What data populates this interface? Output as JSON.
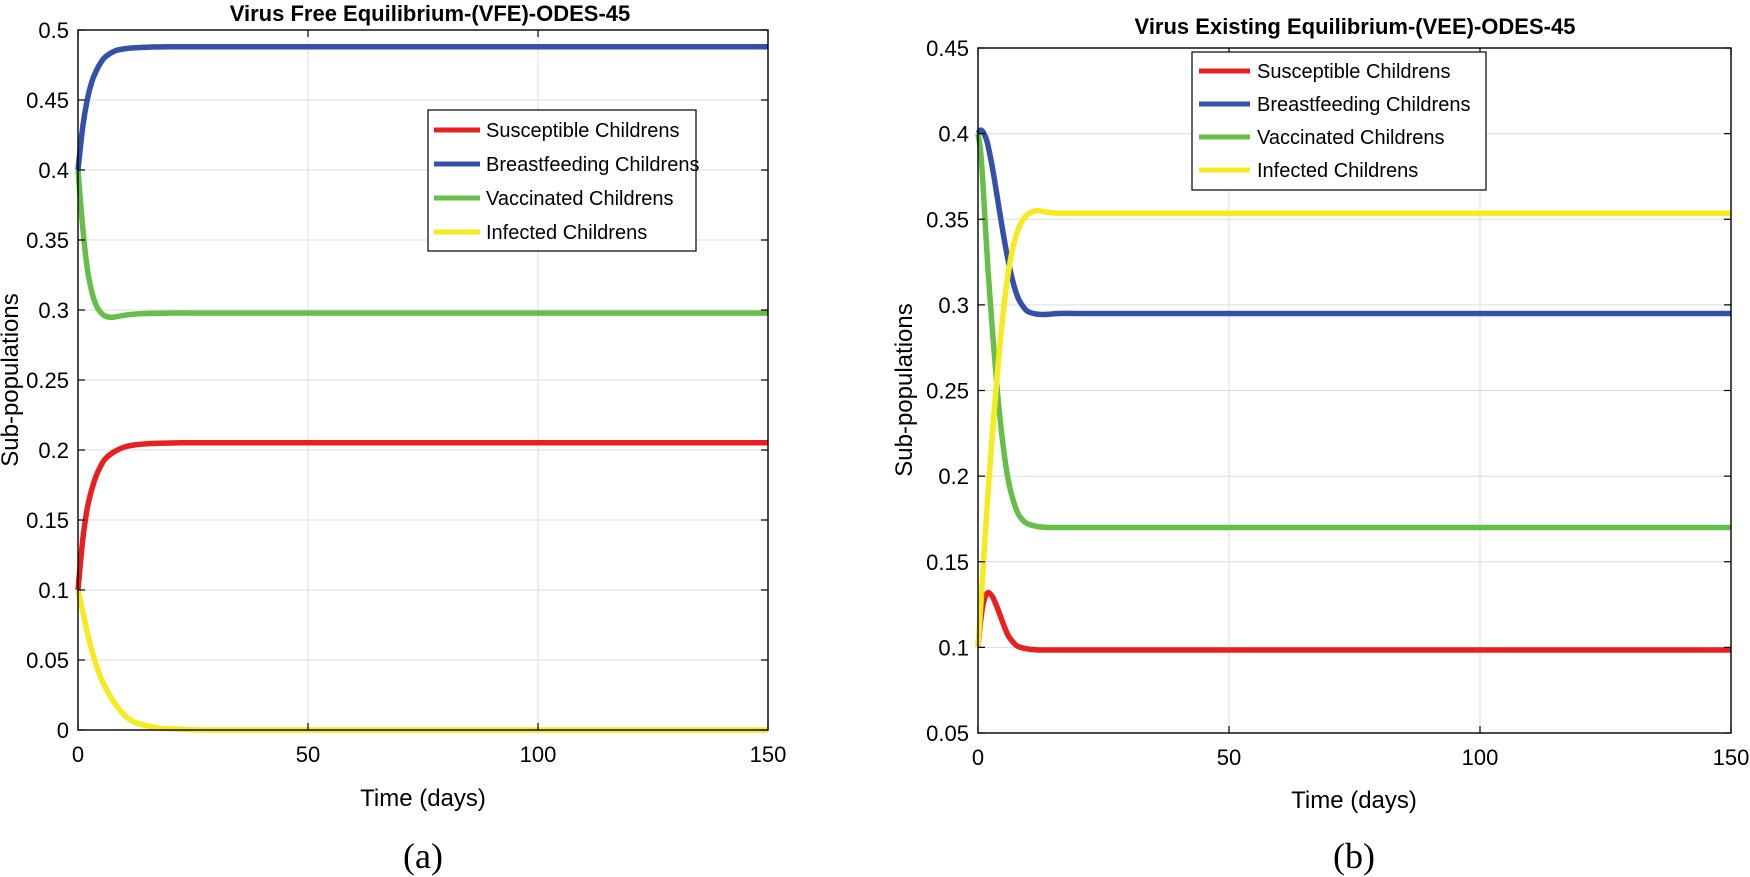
{
  "chart_data": [
    {
      "type": "line",
      "title": "Virus Free Equilibrium-(VFE)-ODES-45",
      "xlabel": "Time (days)",
      "ylabel": "Sub-populations",
      "caption": "(a)",
      "xlim": [
        0,
        150
      ],
      "ylim": [
        0,
        0.5
      ],
      "xticks": [
        0,
        50,
        100,
        150
      ],
      "xtick_labels": [
        "0",
        "50",
        "100",
        "150"
      ],
      "yticks": [
        0,
        0.05,
        0.1,
        0.15,
        0.2,
        0.25,
        0.3,
        0.35,
        0.4,
        0.45,
        0.5
      ],
      "ytick_labels": [
        "0",
        "0.05",
        "0.1",
        "0.15",
        "0.2",
        "0.25",
        "0.3",
        "0.35",
        "0.4",
        "0.45",
        "0.5"
      ],
      "grid": true,
      "legend_position": "upper-right",
      "series": [
        {
          "name": "Susceptible Childrens",
          "color": "#e8201f",
          "x": [
            0,
            1,
            2,
            3,
            4,
            5,
            6,
            8,
            10,
            12,
            15,
            20,
            25,
            30,
            50,
            100,
            150
          ],
          "y": [
            0.1,
            0.135,
            0.158,
            0.172,
            0.182,
            0.189,
            0.194,
            0.199,
            0.202,
            0.2035,
            0.2045,
            0.205,
            0.2052,
            0.2052,
            0.2052,
            0.2052,
            0.2052
          ]
        },
        {
          "name": "Breastfeeding Childrens",
          "color": "#3450a8",
          "x": [
            0,
            1,
            2,
            3,
            4,
            5,
            6,
            8,
            10,
            12,
            15,
            20,
            25,
            30,
            50,
            100,
            150
          ],
          "y": [
            0.4,
            0.43,
            0.45,
            0.463,
            0.471,
            0.477,
            0.481,
            0.485,
            0.4865,
            0.4872,
            0.4877,
            0.488,
            0.488,
            0.488,
            0.488,
            0.488,
            0.488
          ]
        },
        {
          "name": "Vaccinated Childrens",
          "color": "#67bf4a",
          "x": [
            0,
            1,
            2,
            3,
            4,
            5,
            6,
            7,
            8,
            10,
            12,
            15,
            20,
            25,
            30,
            50,
            100,
            150
          ],
          "y": [
            0.4,
            0.36,
            0.33,
            0.313,
            0.303,
            0.298,
            0.2955,
            0.2948,
            0.295,
            0.2962,
            0.297,
            0.2975,
            0.2978,
            0.2978,
            0.2978,
            0.2978,
            0.2978,
            0.2978
          ]
        },
        {
          "name": "Infected Childrens",
          "color": "#f5eb1f",
          "x": [
            0,
            1,
            2,
            3,
            4,
            5,
            6,
            8,
            10,
            12,
            15,
            18,
            20,
            25,
            30,
            50,
            100,
            150
          ],
          "y": [
            0.1,
            0.085,
            0.07,
            0.057,
            0.046,
            0.037,
            0.03,
            0.019,
            0.011,
            0.006,
            0.003,
            0.0012,
            0.0008,
            0.0002,
            0.0,
            0.0,
            0.0,
            0.0
          ]
        }
      ]
    },
    {
      "type": "line",
      "title": "Virus Existing Equilibrium-(VEE)-ODES-45",
      "xlabel": "Time (days)",
      "ylabel": "Sub-populations",
      "caption": "(b)",
      "xlim": [
        0,
        150
      ],
      "ylim": [
        0.05,
        0.45
      ],
      "xticks": [
        0,
        50,
        100,
        150
      ],
      "xtick_labels": [
        "0",
        "50",
        "100",
        "150"
      ],
      "yticks": [
        0.05,
        0.1,
        0.15,
        0.2,
        0.25,
        0.3,
        0.35,
        0.4,
        0.45
      ],
      "ytick_labels": [
        "0.05",
        "0.1",
        "0.15",
        "0.2",
        "0.25",
        "0.3",
        "0.35",
        "0.4",
        "0.45"
      ],
      "grid": true,
      "legend_position": "upper-center",
      "series": [
        {
          "name": "Susceptible Childrens",
          "color": "#e8201f",
          "x": [
            0,
            0.5,
            1,
            1.5,
            2,
            2.5,
            3,
            4,
            5,
            6,
            7,
            8,
            10,
            12,
            15,
            20,
            30,
            50,
            100,
            150
          ],
          "y": [
            0.1,
            0.115,
            0.125,
            0.13,
            0.132,
            0.131,
            0.129,
            0.122,
            0.114,
            0.107,
            0.103,
            0.1005,
            0.099,
            0.0985,
            0.0985,
            0.0985,
            0.0985,
            0.0985,
            0.0985,
            0.0985
          ]
        },
        {
          "name": "Breastfeeding Childrens",
          "color": "#3450a8",
          "x": [
            0,
            0.5,
            1,
            1.5,
            2,
            3,
            4,
            5,
            6,
            7,
            8,
            9,
            10,
            12,
            14,
            16,
            20,
            30,
            50,
            100,
            150
          ],
          "y": [
            0.4,
            0.402,
            0.401,
            0.398,
            0.393,
            0.378,
            0.36,
            0.342,
            0.326,
            0.313,
            0.304,
            0.299,
            0.296,
            0.2945,
            0.2945,
            0.295,
            0.295,
            0.295,
            0.295,
            0.295,
            0.295
          ]
        },
        {
          "name": "Vaccinated Childrens",
          "color": "#67bf4a",
          "x": [
            0,
            0.5,
            1,
            2,
            3,
            4,
            5,
            6,
            7,
            8,
            9,
            10,
            12,
            14,
            16,
            20,
            30,
            50,
            100,
            150
          ],
          "y": [
            0.4,
            0.39,
            0.37,
            0.32,
            0.28,
            0.245,
            0.218,
            0.198,
            0.186,
            0.178,
            0.174,
            0.172,
            0.1705,
            0.17,
            0.17,
            0.17,
            0.17,
            0.17,
            0.17,
            0.17
          ]
        },
        {
          "name": "Infected Childrens",
          "color": "#f5eb1f",
          "x": [
            0,
            0.5,
            1,
            2,
            3,
            4,
            5,
            6,
            7,
            8,
            9,
            10,
            11,
            12,
            14,
            16,
            20,
            30,
            50,
            100,
            150
          ],
          "y": [
            0.1,
            0.122,
            0.145,
            0.19,
            0.23,
            0.265,
            0.295,
            0.318,
            0.334,
            0.344,
            0.35,
            0.353,
            0.3545,
            0.355,
            0.354,
            0.3535,
            0.3535,
            0.3535,
            0.3535,
            0.3535,
            0.3535
          ]
        }
      ]
    }
  ]
}
